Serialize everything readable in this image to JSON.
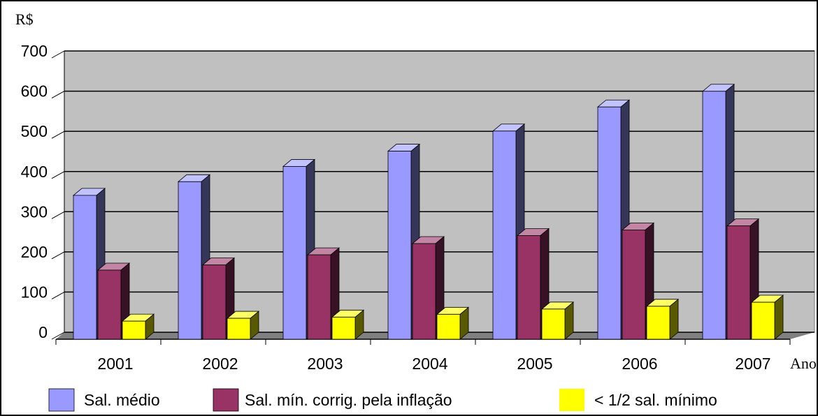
{
  "chart_data": {
    "type": "bar3d",
    "y_label": "R$",
    "x_label": "Ano",
    "categories": [
      "2001",
      "2002",
      "2003",
      "2004",
      "2005",
      "2006",
      "2007"
    ],
    "series": [
      {
        "name": "Sal. médio",
        "color": "#9999ff",
        "values": [
          358,
          392,
          430,
          468,
          518,
          578,
          617
        ]
      },
      {
        "name": "Sal. mín. corrig. pela inflação",
        "color": "#993366",
        "values": [
          172,
          185,
          210,
          238,
          258,
          272,
          282
        ]
      },
      {
        "name": "< 1/2 sal. mínimo",
        "color": "#ffff00",
        "values": [
          45,
          52,
          55,
          62,
          75,
          82,
          92
        ]
      }
    ],
    "ylim": [
      0,
      700
    ],
    "yticks": [
      0,
      100,
      200,
      300,
      400,
      500,
      600,
      700
    ],
    "grid": true,
    "legend": "bottom"
  }
}
